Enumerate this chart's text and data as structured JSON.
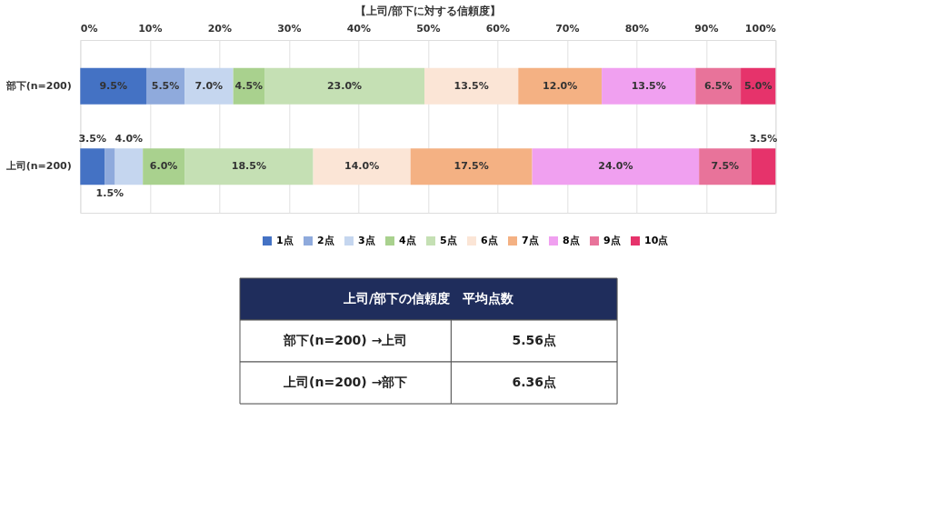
{
  "chart_data": {
    "type": "bar",
    "orientation": "horizontal",
    "stacked": true,
    "title": "【上司/部下に対する信頼度】",
    "categories": [
      "部下(n=200)",
      "上司(n=200)"
    ],
    "series": [
      {
        "name": "1点",
        "color": "#4472c4",
        "values": [
          9.5,
          3.5
        ]
      },
      {
        "name": "2点",
        "color": "#8faadc",
        "values": [
          5.5,
          1.5
        ]
      },
      {
        "name": "3点",
        "color": "#c5d6ef",
        "values": [
          7.0,
          4.0
        ]
      },
      {
        "name": "4点",
        "color": "#a9d18e",
        "values": [
          4.5,
          6.0
        ]
      },
      {
        "name": "5点",
        "color": "#c5e0b4",
        "values": [
          23.0,
          18.5
        ]
      },
      {
        "name": "6点",
        "color": "#fbe5d6",
        "values": [
          13.5,
          14.0
        ]
      },
      {
        "name": "7点",
        "color": "#f4b183",
        "values": [
          12.0,
          17.5
        ]
      },
      {
        "name": "8点",
        "color": "#f0a0f0",
        "values": [
          13.5,
          24.0
        ]
      },
      {
        "name": "9点",
        "color": "#e8739a",
        "values": [
          6.5,
          7.5
        ]
      },
      {
        "name": "10点",
        "color": "#e6336b",
        "values": [
          5.0,
          3.5
        ]
      }
    ],
    "xlim": [
      0,
      100
    ],
    "xticks": [
      {
        "value": 0,
        "label": "0%"
      },
      {
        "value": 10,
        "label": "10%"
      },
      {
        "value": 20,
        "label": "20%"
      },
      {
        "value": 30,
        "label": "30%"
      },
      {
        "value": 40,
        "label": "40%"
      },
      {
        "value": 50,
        "label": "50%"
      },
      {
        "value": 60,
        "label": "60%"
      },
      {
        "value": 70,
        "label": "70%"
      },
      {
        "value": 80,
        "label": "80%"
      },
      {
        "value": 90,
        "label": "90%"
      },
      {
        "value": 100,
        "label": "100%"
      }
    ],
    "grid": "x",
    "legend": "bottom",
    "value_labels": [
      [
        "9.5%",
        "3.5%"
      ],
      [
        "5.5%",
        "1.5%"
      ],
      [
        "7.0%",
        "4.0%"
      ],
      [
        "4.5%",
        "6.0%"
      ],
      [
        "23.0%",
        "18.5%"
      ],
      [
        "13.5%",
        "14.0%"
      ],
      [
        "12.0%",
        "17.5%"
      ],
      [
        "13.5%",
        "24.0%"
      ],
      [
        "6.5%",
        "7.5%"
      ],
      [
        "5.0%",
        "3.5%"
      ]
    ],
    "annotations": [
      "上司/部下の信頼度　平均点数",
      "部下(n=200) →上司",
      "5.56点",
      "上司(n=200) →部下",
      "6.36点"
    ]
  }
}
